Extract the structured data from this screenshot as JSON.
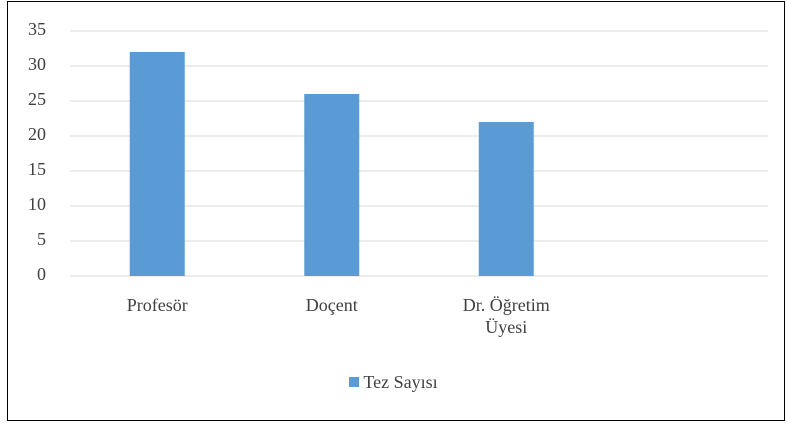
{
  "chart_data": {
    "type": "bar",
    "categories": [
      "Profesör",
      "Doçent",
      "Dr. Öğretim Üyesi",
      null
    ],
    "series": [
      {
        "name": "Tez Sayısı",
        "color": "#5b9bd5",
        "values": [
          32,
          26,
          22,
          null
        ]
      }
    ],
    "ylim": [
      0,
      35
    ],
    "yticks": [
      0,
      5,
      10,
      15,
      20,
      25,
      30,
      35
    ],
    "grid": true,
    "legend": "bottom"
  }
}
